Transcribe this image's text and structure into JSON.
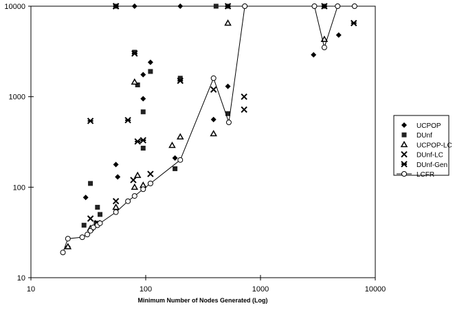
{
  "chart_data": {
    "type": "scatter",
    "title": "",
    "xlabel": "Minimum Number of Nodes Generated (Log)",
    "ylabel": "",
    "x_scale": "log",
    "y_scale": "log",
    "xlim": [
      10,
      10000
    ],
    "ylim": [
      10,
      10000
    ],
    "x_ticks": [
      "10",
      "100",
      "1000",
      "10000"
    ],
    "y_ticks": [
      "10",
      "100",
      "1000",
      "10000"
    ],
    "grid": false,
    "legend_position": "right",
    "series": [
      {
        "name": "UCPOP",
        "marker": "diamond-filled",
        "points": [
          [
            21,
            27
          ],
          [
            21,
            22
          ],
          [
            30,
            77
          ],
          [
            55,
            178
          ],
          [
            57,
            130
          ],
          [
            80,
            10000
          ],
          [
            95,
            950
          ],
          [
            95,
            1750
          ],
          [
            110,
            2400
          ],
          [
            180,
            210
          ],
          [
            200,
            10000
          ],
          [
            390,
            560
          ],
          [
            520,
            1300
          ],
          [
            2900,
            2900
          ],
          [
            4800,
            4800
          ]
        ]
      },
      {
        "name": "DUnf",
        "marker": "square-filled",
        "points": [
          [
            33,
            110
          ],
          [
            29,
            38
          ],
          [
            38,
            60
          ],
          [
            40,
            50
          ],
          [
            37,
            40
          ],
          [
            55,
            10000
          ],
          [
            80,
            3100
          ],
          [
            85,
            1350
          ],
          [
            95,
            680
          ],
          [
            95,
            270
          ],
          [
            110,
            1900
          ],
          [
            180,
            160
          ],
          [
            200,
            1600
          ],
          [
            410,
            10000
          ],
          [
            520,
            10000
          ],
          [
            520,
            650
          ],
          [
            3600,
            10000
          ]
        ]
      },
      {
        "name": "UCPOP-LC",
        "marker": "triangle-open",
        "points": [
          [
            21,
            22
          ],
          [
            33,
            35
          ],
          [
            55,
            60
          ],
          [
            80,
            1450
          ],
          [
            80,
            100
          ],
          [
            85,
            135
          ],
          [
            95,
            105
          ],
          [
            170,
            290
          ],
          [
            200,
            360
          ],
          [
            390,
            390
          ],
          [
            520,
            6500
          ],
          [
            3600,
            4300
          ]
        ]
      },
      {
        "name": "DUnf-LC",
        "marker": "x",
        "points": [
          [
            33,
            45
          ],
          [
            38,
            40
          ],
          [
            55,
            70
          ],
          [
            55,
            10000
          ],
          [
            78,
            120
          ],
          [
            110,
            140
          ],
          [
            390,
            1200
          ],
          [
            720,
            1000
          ],
          [
            720,
            720
          ]
        ]
      },
      {
        "name": "DUnf-Gen",
        "marker": "star",
        "points": [
          [
            33,
            540
          ],
          [
            70,
            550
          ],
          [
            85,
            320
          ],
          [
            95,
            330
          ],
          [
            80,
            3000
          ],
          [
            200,
            1500
          ],
          [
            55,
            10000
          ],
          [
            520,
            10000
          ],
          [
            3600,
            10000
          ],
          [
            6500,
            6500
          ]
        ]
      },
      {
        "name": "LCFR",
        "marker": "circle-open-line",
        "points": [
          [
            19,
            19
          ],
          [
            21,
            27
          ],
          [
            28,
            28
          ],
          [
            31,
            30
          ],
          [
            33,
            33
          ],
          [
            35,
            36
          ],
          [
            38,
            38
          ],
          [
            40,
            40
          ],
          [
            55,
            53
          ],
          [
            70,
            70
          ],
          [
            80,
            80
          ],
          [
            95,
            95
          ],
          [
            110,
            110
          ],
          [
            200,
            200
          ],
          [
            390,
            1600
          ],
          [
            530,
            520
          ],
          [
            730,
            10000
          ],
          [
            2950,
            10000
          ],
          [
            3600,
            3500
          ],
          [
            4700,
            10000
          ],
          [
            6600,
            10000
          ]
        ]
      }
    ]
  }
}
